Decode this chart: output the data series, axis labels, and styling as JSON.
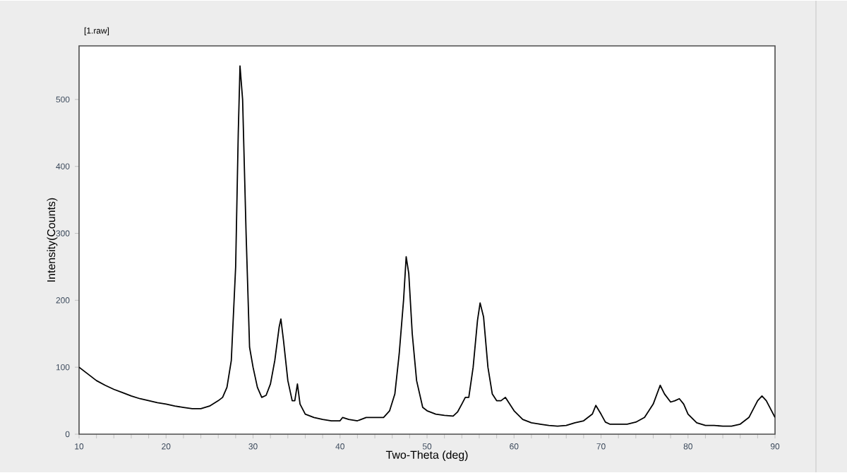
{
  "chart_data": {
    "type": "line",
    "title": "[1.raw]",
    "xlabel": "Two-Theta (deg)",
    "ylabel": "Intensity(Counts)",
    "xlim": [
      10,
      90
    ],
    "xticks": [
      10,
      20,
      30,
      40,
      50,
      60,
      70,
      80,
      90
    ],
    "ylim": [
      0,
      580
    ],
    "yticks": [
      0,
      100,
      200,
      300,
      400,
      500
    ],
    "grid": false,
    "marker": "none",
    "line_style": "solid",
    "series": [
      {
        "color": "#000000",
        "x": [
          10,
          11,
          12,
          13,
          14,
          15,
          16,
          17,
          18,
          19,
          20,
          21,
          22,
          23,
          24,
          25,
          26,
          26.5,
          27,
          27.5,
          28,
          28.3,
          28.5,
          28.8,
          29.2,
          29.6,
          30,
          30.5,
          31,
          31.5,
          32,
          32.5,
          33,
          33.2,
          33.5,
          34,
          34.5,
          34.8,
          35.1,
          35.4,
          36,
          37,
          38,
          39,
          40,
          40.3,
          41,
          42,
          43,
          44,
          45,
          45.7,
          46.3,
          46.8,
          47.3,
          47.6,
          47.9,
          48.3,
          48.8,
          49.5,
          50,
          51,
          52,
          53,
          53.5,
          54,
          54.4,
          54.8,
          55.3,
          55.8,
          56.1,
          56.5,
          57,
          57.5,
          58,
          58.5,
          59,
          59.5,
          60,
          61,
          62,
          63,
          64,
          65,
          66,
          67,
          68,
          69,
          69.4,
          70,
          70.5,
          71,
          72,
          73,
          74,
          75,
          76,
          76.8,
          77.3,
          78,
          78.5,
          79,
          79.5,
          80,
          81,
          82,
          83,
          84,
          85,
          86,
          87,
          88,
          88.5,
          89,
          89.6,
          90
        ],
        "values": [
          100,
          90,
          80,
          73,
          67,
          62,
          57,
          53,
          50,
          47,
          45,
          42,
          40,
          38,
          38,
          42,
          50,
          55,
          70,
          110,
          250,
          450,
          550,
          500,
          300,
          130,
          100,
          70,
          55,
          58,
          75,
          110,
          160,
          172,
          140,
          80,
          50,
          50,
          75,
          45,
          30,
          25,
          22,
          20,
          20,
          25,
          22,
          20,
          25,
          25,
          25,
          35,
          60,
          120,
          200,
          265,
          240,
          150,
          80,
          40,
          35,
          30,
          28,
          27,
          33,
          45,
          55,
          55,
          100,
          170,
          196,
          175,
          100,
          60,
          50,
          50,
          55,
          45,
          35,
          22,
          17,
          15,
          13,
          12,
          13,
          17,
          20,
          30,
          43,
          30,
          18,
          15,
          15,
          15,
          18,
          25,
          45,
          73,
          60,
          48,
          50,
          53,
          45,
          30,
          17,
          13,
          13,
          12,
          12,
          15,
          25,
          50,
          57,
          50,
          35,
          25
        ]
      }
    ]
  }
}
